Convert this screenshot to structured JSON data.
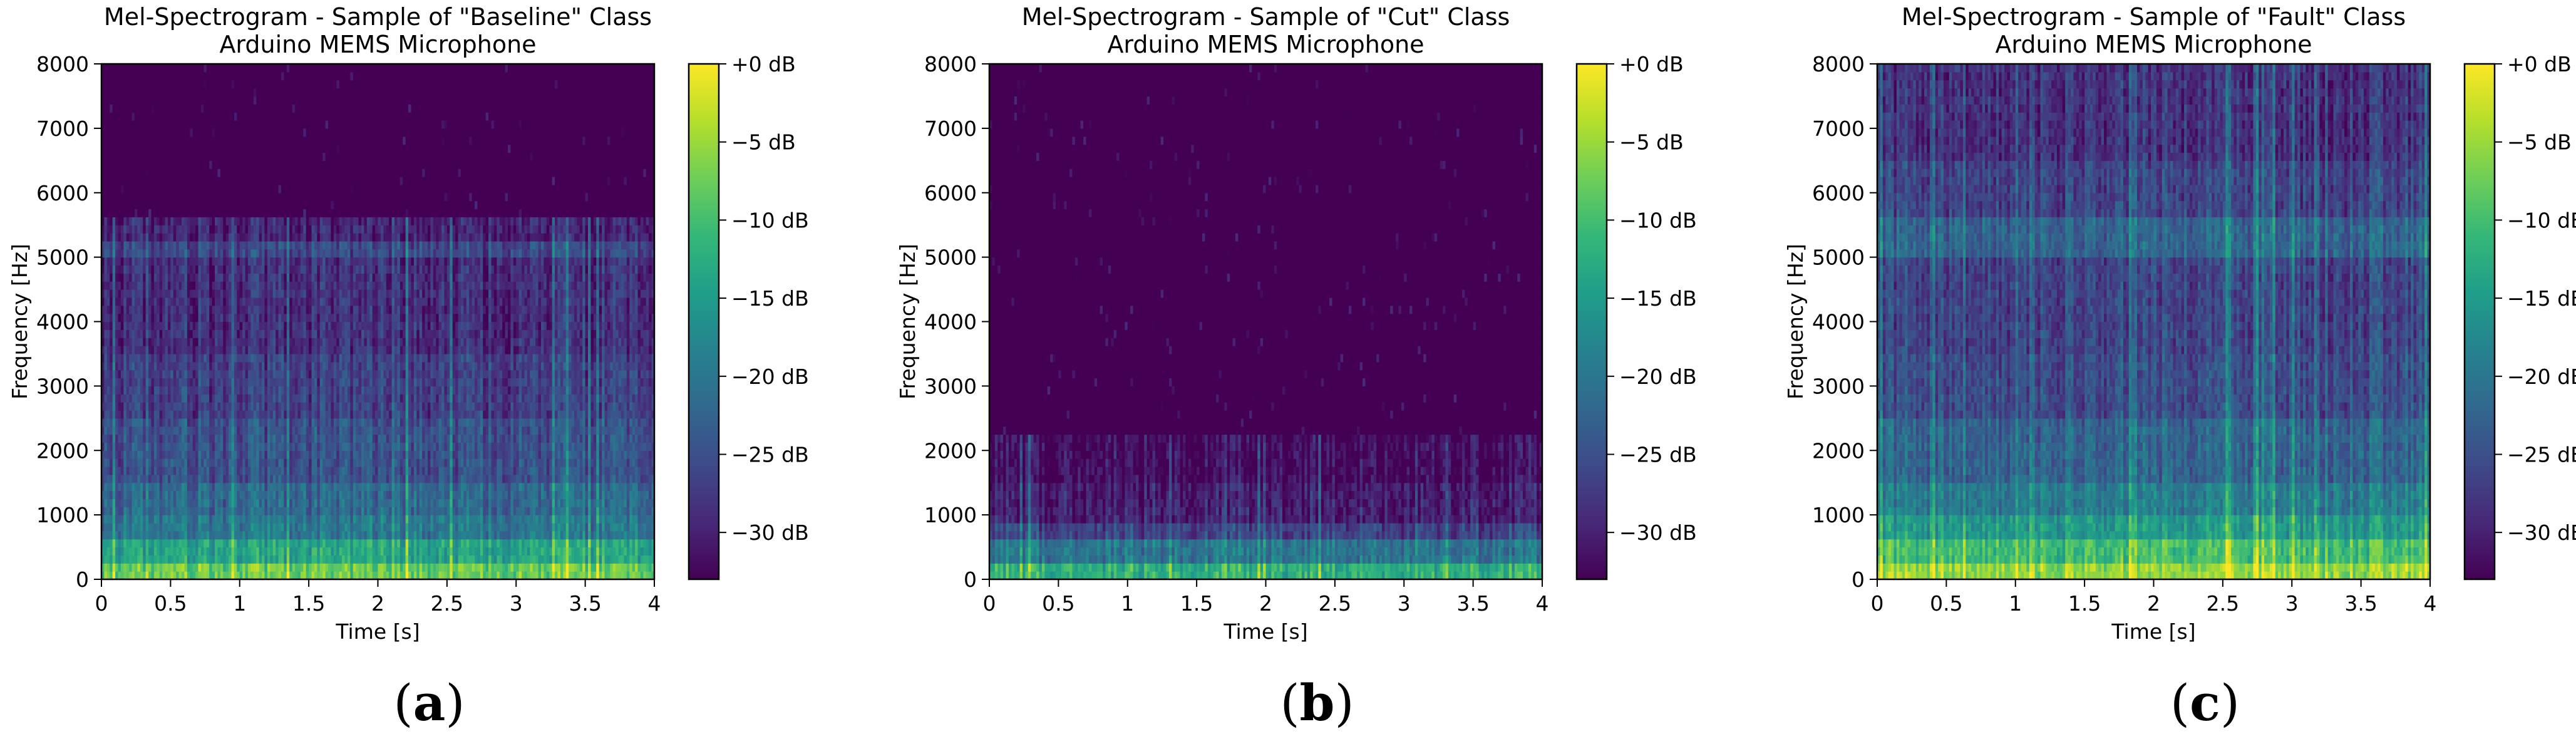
{
  "colors": {
    "colormap": "viridis",
    "viridis_stops": [
      "#440154",
      "#482878",
      "#3e4a89",
      "#31688e",
      "#26828e",
      "#1f9e89",
      "#35b779",
      "#6ece58",
      "#b5de2b",
      "#fde725"
    ]
  },
  "panels": [
    {
      "label_open": "(",
      "label_letter": "a",
      "label_close": ")",
      "chart_data": {
        "type": "heatmap",
        "title_line1": "Mel-Spectrogram - Sample of \"Baseline\" Class",
        "title_line2": "Arduino MEMS Microphone",
        "xlabel": "Time [s]",
        "ylabel": "Frequency [Hz]",
        "xlim": [
          0,
          4
        ],
        "ylim": [
          0,
          8000
        ],
        "x_ticks": [
          "0",
          "0.5",
          "1",
          "1.5",
          "2",
          "2.5",
          "3",
          "3.5",
          "4"
        ],
        "y_ticks": [
          "0",
          "1000",
          "2000",
          "3000",
          "4000",
          "5000",
          "6000",
          "7000",
          "8000"
        ],
        "colorbar_range_db": [
          -33,
          0
        ],
        "colorbar_ticks": [
          "+0 dB",
          "−5 dB",
          "−10 dB",
          "−15 dB",
          "−20 dB",
          "−25 dB",
          "−30 dB"
        ],
        "approx_level_db_by_freq_band": [
          {
            "hz_max": 300,
            "db": -8
          },
          {
            "hz_max": 600,
            "db": -14
          },
          {
            "hz_max": 1000,
            "db": -20
          },
          {
            "hz_max": 1500,
            "db": -22
          },
          {
            "hz_max": 2500,
            "db": -25
          },
          {
            "hz_max": 3500,
            "db": -27
          },
          {
            "hz_max": 5000,
            "db": -29
          },
          {
            "hz_max": 5300,
            "db": -26
          },
          {
            "hz_max": 5600,
            "db": -30
          },
          {
            "hz_max": 8000,
            "db": -33
          }
        ]
      }
    },
    {
      "label_open": "(",
      "label_letter": "b",
      "label_close": ")",
      "chart_data": {
        "type": "heatmap",
        "title_line1": "Mel-Spectrogram - Sample of \"Cut\" Class",
        "title_line2": "Arduino MEMS Microphone",
        "xlabel": "Time [s]",
        "ylabel": "Frequency [Hz]",
        "xlim": [
          0,
          4
        ],
        "ylim": [
          0,
          8000
        ],
        "x_ticks": [
          "0",
          "0.5",
          "1",
          "1.5",
          "2",
          "2.5",
          "3",
          "3.5",
          "4"
        ],
        "y_ticks": [
          "0",
          "1000",
          "2000",
          "3000",
          "4000",
          "5000",
          "6000",
          "7000",
          "8000"
        ],
        "colorbar_range_db": [
          -33,
          0
        ],
        "colorbar_ticks": [
          "+0 dB",
          "−5 dB",
          "−10 dB",
          "−15 dB",
          "−20 dB",
          "−25 dB",
          "−30 dB"
        ],
        "approx_level_db_by_freq_band": [
          {
            "hz_max": 300,
            "db": -12
          },
          {
            "hz_max": 600,
            "db": -20
          },
          {
            "hz_max": 900,
            "db": -26
          },
          {
            "hz_max": 1500,
            "db": -30
          },
          {
            "hz_max": 2200,
            "db": -32
          },
          {
            "hz_max": 8000,
            "db": -33
          }
        ]
      }
    },
    {
      "label_open": "(",
      "label_letter": "c",
      "label_close": ")",
      "chart_data": {
        "type": "heatmap",
        "title_line1": "Mel-Spectrogram - Sample of \"Fault\" Class",
        "title_line2": "Arduino MEMS Microphone",
        "xlabel": "Time [s]",
        "ylabel": "Frequency [Hz]",
        "xlim": [
          0,
          4
        ],
        "ylim": [
          0,
          8000
        ],
        "x_ticks": [
          "0",
          "0.5",
          "1",
          "1.5",
          "2",
          "2.5",
          "3",
          "3.5",
          "4"
        ],
        "y_ticks": [
          "0",
          "1000",
          "2000",
          "3000",
          "4000",
          "5000",
          "6000",
          "7000",
          "8000"
        ],
        "colorbar_range_db": [
          -33,
          0
        ],
        "colorbar_ticks": [
          "+0 dB",
          "−5 dB",
          "−10 dB",
          "−15 dB",
          "−20 dB",
          "−25 dB",
          "−30 dB"
        ],
        "approx_level_db_by_freq_band": [
          {
            "hz_max": 300,
            "db": -5
          },
          {
            "hz_max": 600,
            "db": -10
          },
          {
            "hz_max": 1000,
            "db": -15
          },
          {
            "hz_max": 1500,
            "db": -19
          },
          {
            "hz_max": 2500,
            "db": -22
          },
          {
            "hz_max": 3500,
            "db": -25
          },
          {
            "hz_max": 5000,
            "db": -26
          },
          {
            "hz_max": 5600,
            "db": -22
          },
          {
            "hz_max": 6500,
            "db": -26
          },
          {
            "hz_max": 8000,
            "db": -28
          }
        ]
      }
    }
  ]
}
